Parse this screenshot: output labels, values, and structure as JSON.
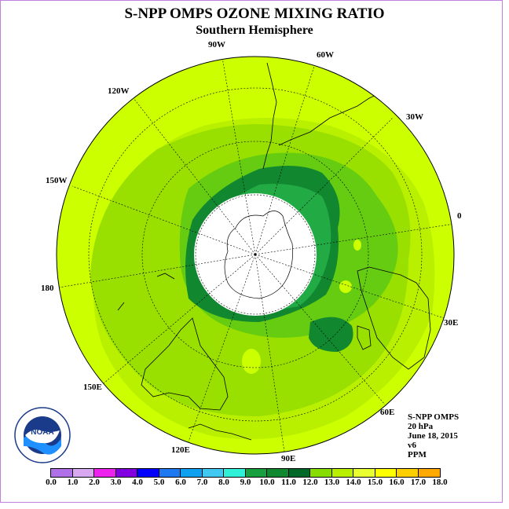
{
  "title": "S-NPP OMPS OZONE MIXING RATIO",
  "subtitle": "Southern Hemisphere",
  "longitude_labels": {
    "lon_90w": "90W",
    "lon_60w": "60W",
    "lon_30w": "30W",
    "lon_0": "0",
    "lon_30e": "30E",
    "lon_60e": "60E",
    "lon_90e": "90E",
    "lon_120e": "120E",
    "lon_150e": "150E",
    "lon_180": "180",
    "lon_150w": "150W",
    "lon_120w": "120W"
  },
  "info": {
    "product": "S-NPP OMPS",
    "level": "20 hPa",
    "date": "June 18, 2015",
    "version": "v6",
    "units": "PPM"
  },
  "logo": {
    "text": "NOAA",
    "icon": "noaa-logo"
  },
  "colorbar": {
    "colors": [
      "#b070e8",
      "#d8a8f0",
      "#ee22ee",
      "#8000e0",
      "#0000ff",
      "#1e78f0",
      "#10a0f0",
      "#40c8f0",
      "#30f0d8",
      "#18a040",
      "#108830",
      "#006828",
      "#88dd00",
      "#b8f000",
      "#e8ff30",
      "#ffff00",
      "#ffd000",
      "#ffa800",
      "#ff7000",
      "#ff2000",
      "#e00000",
      "#884422"
    ],
    "labels": [
      "0.0",
      "1.0",
      "2.0",
      "3.0",
      "4.0",
      "5.0",
      "6.0",
      "7.0",
      "8.0",
      "9.0",
      "10.0",
      "11.0",
      "12.0",
      "13.0",
      "14.0",
      "15.0",
      "16.0",
      "17.0",
      "18.0"
    ]
  },
  "field_colors": {
    "outer": "#ccff00",
    "ring_12": "#b8f000",
    "ring_11": "#99e000",
    "ring_10": "#66cc11",
    "ring_9": "#11882f",
    "ring_8": "#006e2e",
    "high": "#ffff00",
    "missing_polar_night": "#ffffff"
  }
}
